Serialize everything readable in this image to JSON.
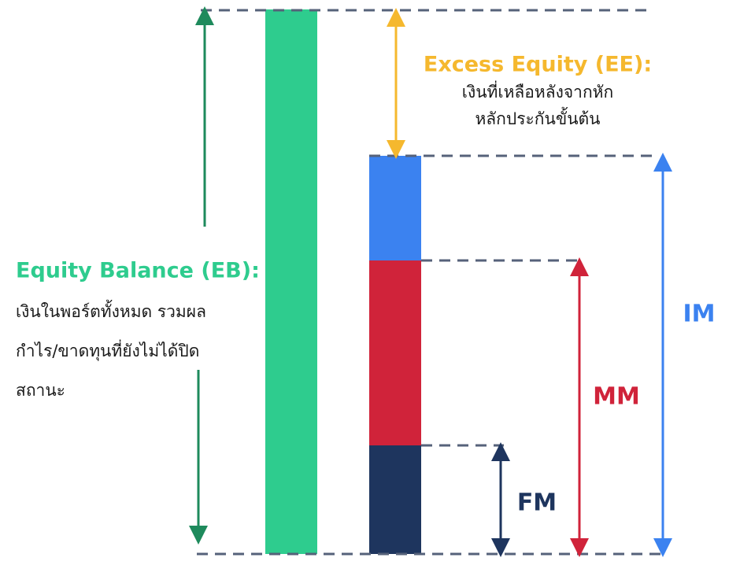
{
  "excess_equity": {
    "title": "Excess Equity (EE):",
    "lines": [
      "เงินที่เหลือหลังจากหัก",
      "หลักประกันขั้นต้น"
    ]
  },
  "equity_balance": {
    "title": "Equity Balance (EB):",
    "lines": [
      "เงินในพอร์ตทั้งหมด รวมผล",
      "กำไร/ขาดทุนที่ยังไม่ได้ปิด",
      "สถานะ"
    ]
  },
  "labels": {
    "im": "IM",
    "mm": "MM",
    "fm": "FM"
  }
}
